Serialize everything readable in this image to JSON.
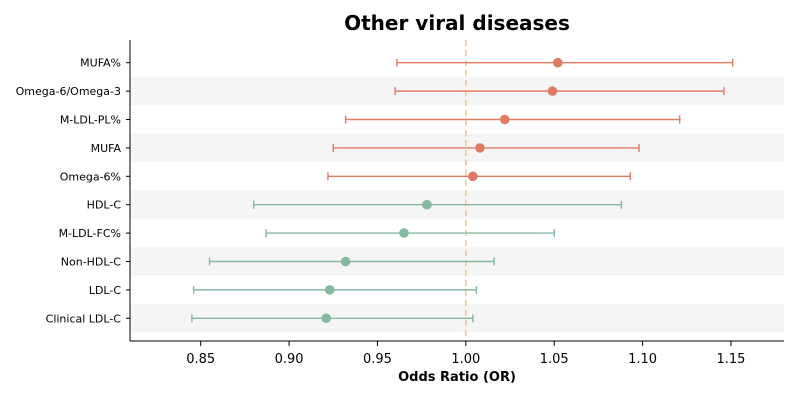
{
  "chart_data": {
    "type": "forest",
    "title": "Other viral diseases",
    "xlabel": "Odds Ratio (OR)",
    "xlim": [
      0.81,
      1.18
    ],
    "x_ticks": [
      0.85,
      0.9,
      0.95,
      1.0,
      1.05,
      1.1,
      1.15
    ],
    "x_tick_labels": [
      "0.85",
      "0.90",
      "0.95",
      "1.00",
      "1.05",
      "1.10",
      "1.15"
    ],
    "reference_line": 1.0,
    "grid": false,
    "row_banding": true,
    "colors": {
      "above_one": "#e07b63",
      "below_one": "#85b8a0",
      "reference": "#f5c98f",
      "band": "#f5f5f5"
    },
    "rows": [
      {
        "label": "MUFA%",
        "or": 1.052,
        "lower": 0.961,
        "upper": 1.151,
        "group": "above_one"
      },
      {
        "label": "Omega-6/Omega-3",
        "or": 1.049,
        "lower": 0.96,
        "upper": 1.146,
        "group": "above_one"
      },
      {
        "label": "M-LDL-PL%",
        "or": 1.022,
        "lower": 0.932,
        "upper": 1.121,
        "group": "above_one"
      },
      {
        "label": "MUFA",
        "or": 1.008,
        "lower": 0.925,
        "upper": 1.098,
        "group": "above_one"
      },
      {
        "label": "Omega-6%",
        "or": 1.004,
        "lower": 0.922,
        "upper": 1.093,
        "group": "above_one"
      },
      {
        "label": "HDL-C",
        "or": 0.978,
        "lower": 0.88,
        "upper": 1.088,
        "group": "below_one"
      },
      {
        "label": "M-LDL-FC%",
        "or": 0.965,
        "lower": 0.887,
        "upper": 1.05,
        "group": "below_one"
      },
      {
        "label": "Non-HDL-C",
        "or": 0.932,
        "lower": 0.855,
        "upper": 1.016,
        "group": "below_one"
      },
      {
        "label": "LDL-C",
        "or": 0.923,
        "lower": 0.846,
        "upper": 1.006,
        "group": "below_one"
      },
      {
        "label": "Clinical LDL-C",
        "or": 0.921,
        "lower": 0.845,
        "upper": 1.004,
        "group": "below_one"
      }
    ]
  }
}
